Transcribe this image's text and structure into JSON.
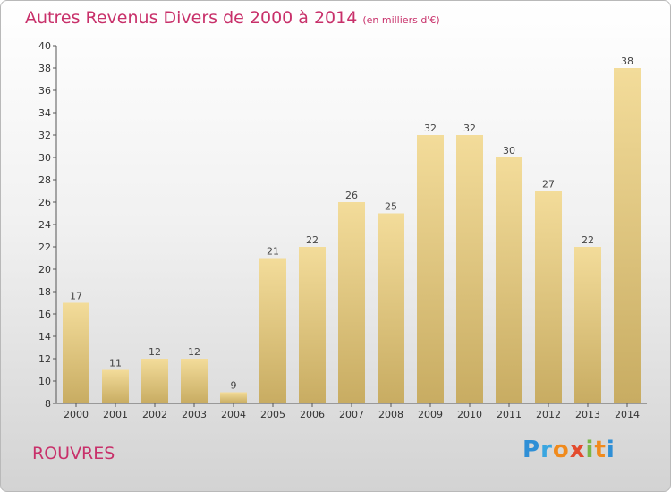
{
  "title": "Autres Revenus Divers de 2000 à 2014",
  "subtitle": "(en milliers d'€)",
  "city": "ROUVRES",
  "logo": {
    "text": "Proxiti",
    "colors": [
      "#2f8fd6",
      "#3aa6e0",
      "#f08a1c",
      "#e34b2e",
      "#7ab648",
      "#f08a1c",
      "#2f8fd6"
    ]
  },
  "colors": {
    "bar_light": "#f3dc9a",
    "bar_dark": "#c8ac62",
    "title": "#c8306a"
  },
  "chart_data": {
    "type": "bar",
    "categories": [
      "2000",
      "2001",
      "2002",
      "2003",
      "2004",
      "2005",
      "2006",
      "2007",
      "2008",
      "2009",
      "2010",
      "2011",
      "2012",
      "2013",
      "2014"
    ],
    "values": [
      17,
      11,
      12,
      12,
      9,
      21,
      22,
      26,
      25,
      32,
      32,
      30,
      27,
      22,
      38
    ],
    "ylim": [
      8,
      40
    ],
    "yticks": [
      8,
      10,
      12,
      14,
      16,
      18,
      20,
      22,
      24,
      26,
      28,
      30,
      32,
      34,
      36,
      38,
      40
    ],
    "grid": false,
    "xlabel": "",
    "ylabel": ""
  }
}
